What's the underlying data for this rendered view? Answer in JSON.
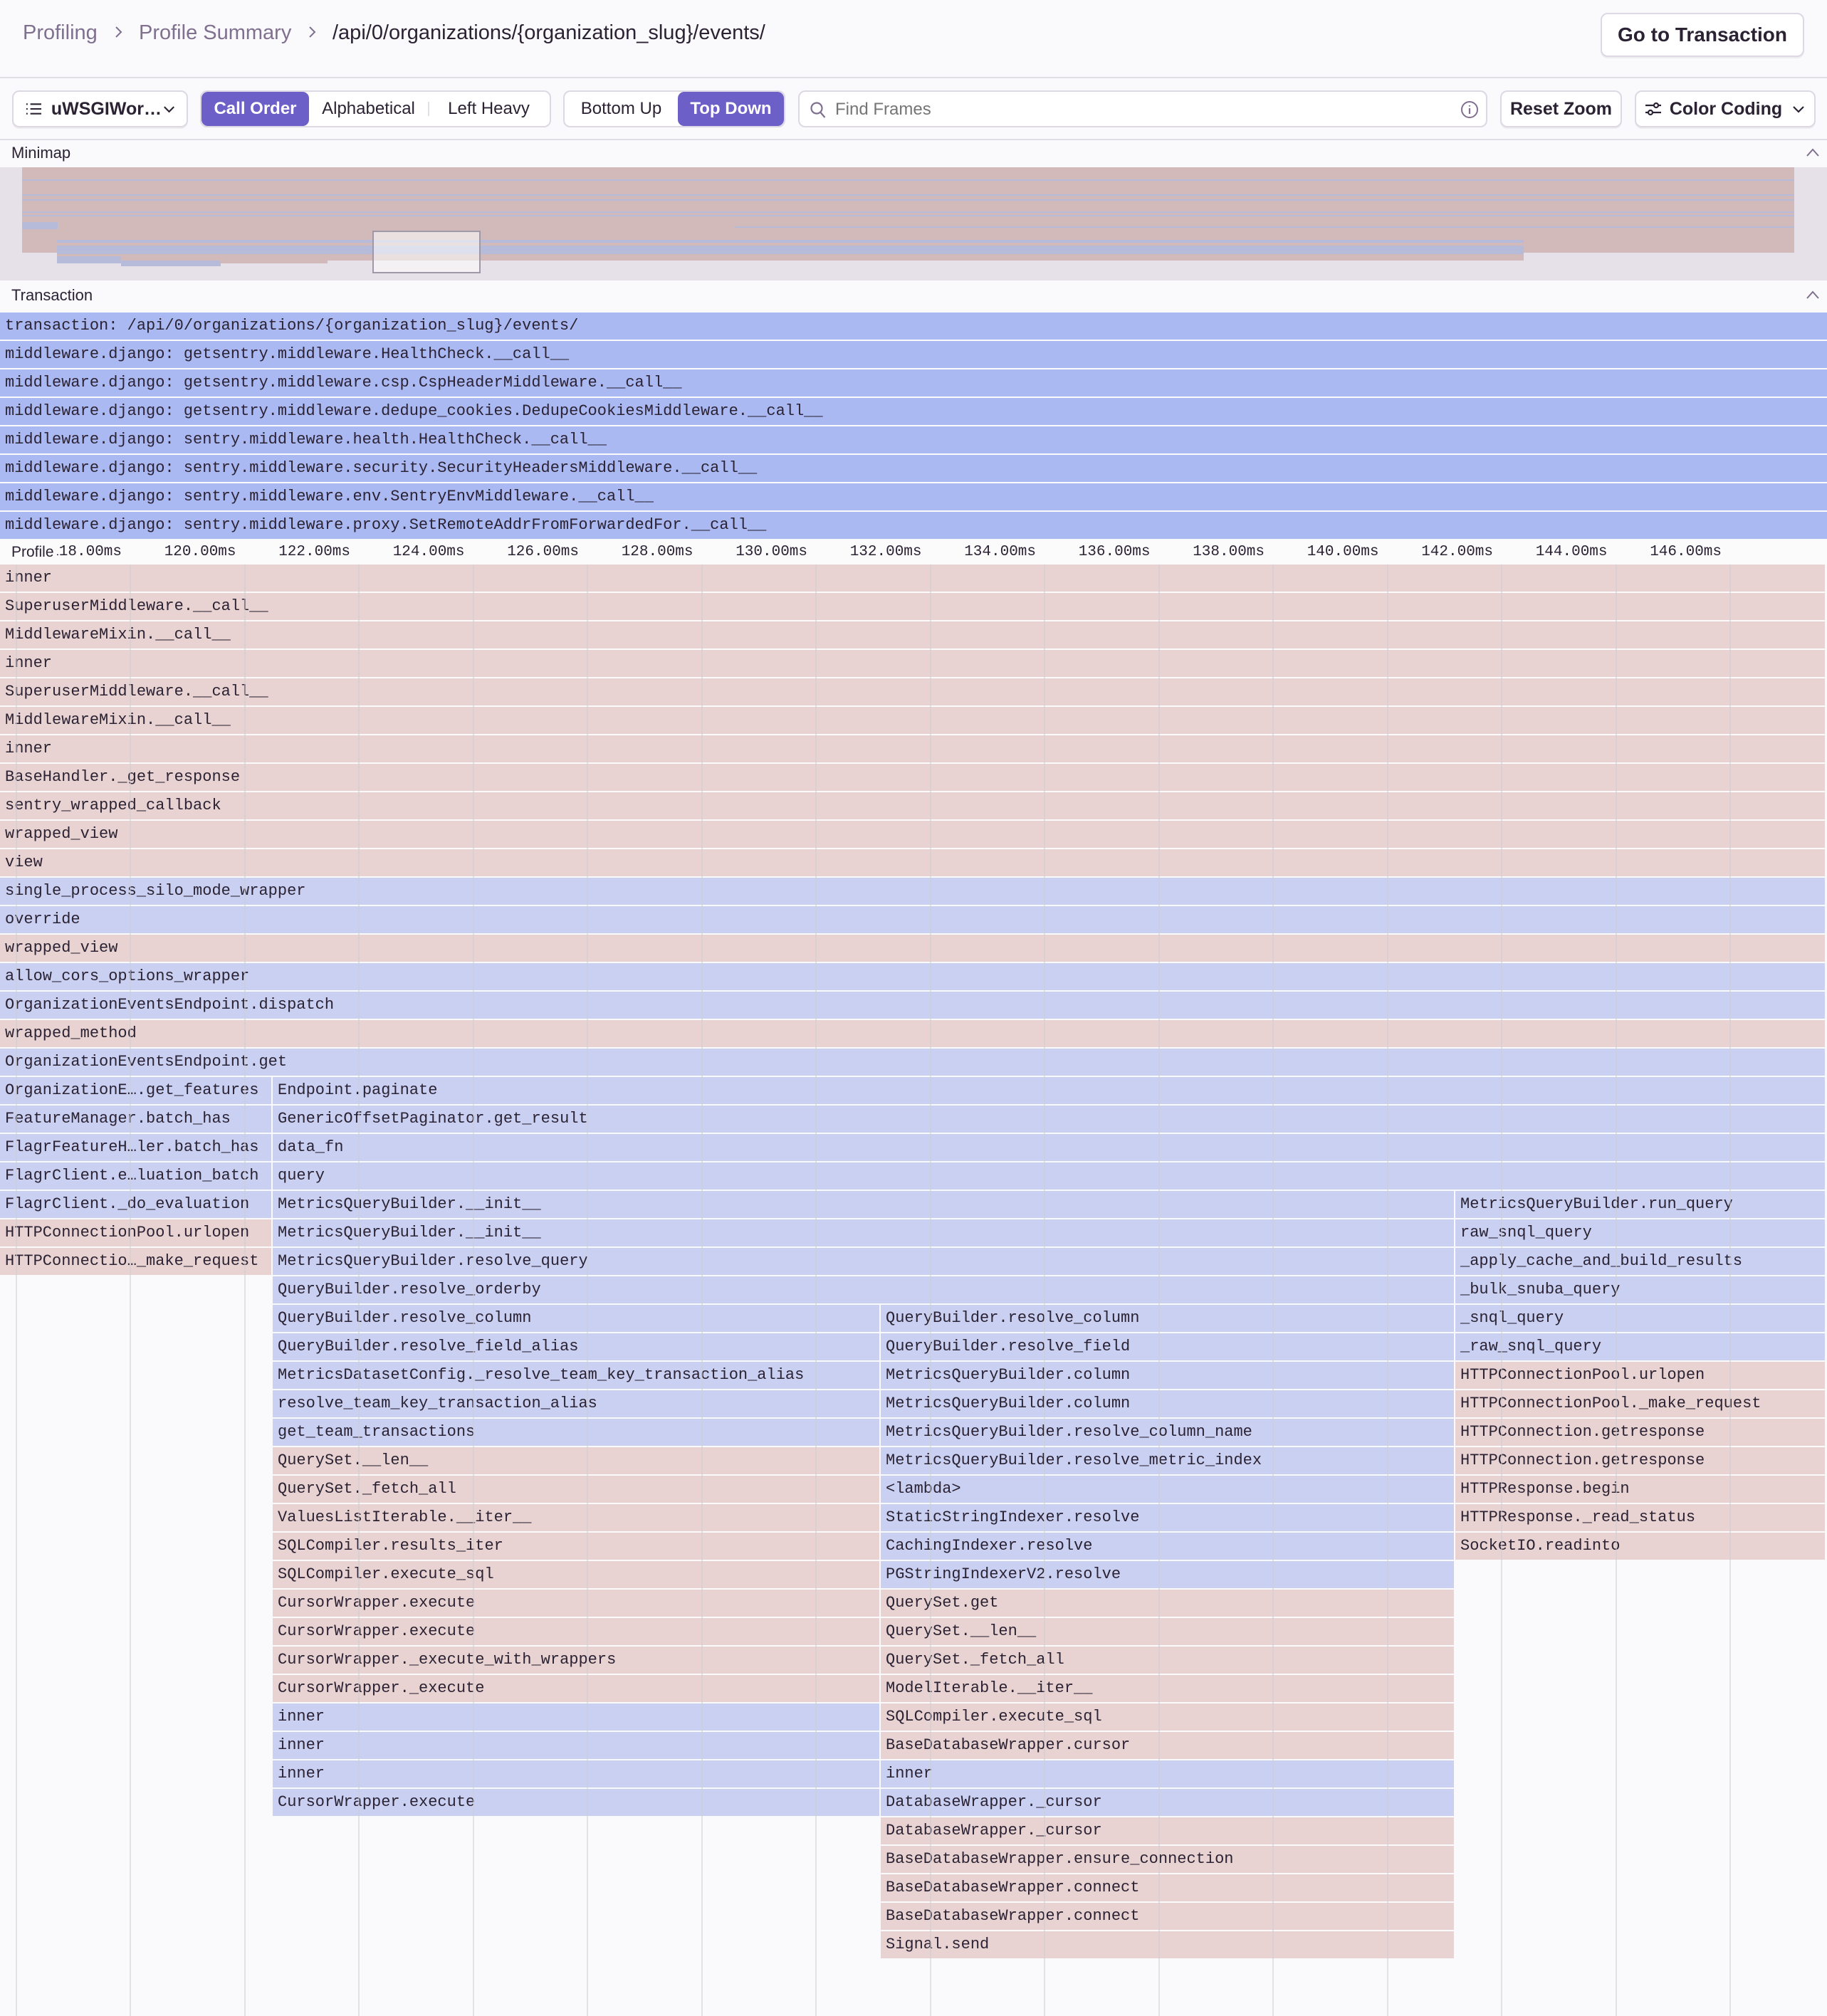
{
  "header": {
    "breadcrumbs": [
      "Profiling",
      "Profile Summary",
      "/api/0/organizations/{organization_slug}/events/"
    ],
    "go_to_transaction": "Go to Transaction"
  },
  "toolbar": {
    "thread_select": "uWSGIWor…",
    "sort_options": [
      "Call Order",
      "Alphabetical",
      "Left Heavy"
    ],
    "sort_active": "Call Order",
    "view_options": [
      "Bottom Up",
      "Top Down"
    ],
    "view_active": "Top Down",
    "search_placeholder": "Find Frames",
    "reset_zoom": "Reset Zoom",
    "color_coding": "Color Coding"
  },
  "minimap": {
    "label": "Minimap"
  },
  "transaction": {
    "label": "Transaction",
    "spans": [
      "transaction: /api/0/organizations/{organization_slug}/events/",
      "middleware.django: getsentry.middleware.HealthCheck.__call__",
      "middleware.django: getsentry.middleware.csp.CspHeaderMiddleware.__call__",
      "middleware.django: getsentry.middleware.dedupe_cookies.DedupeCookiesMiddleware.__call__",
      "middleware.django: sentry.middleware.health.HealthCheck.__call__",
      "middleware.django: sentry.middleware.security.SecurityHeadersMiddleware.__call__",
      "middleware.django: sentry.middleware.env.SentryEnvMiddleware.__call__",
      "middleware.django: sentry.middleware.proxy.SetRemoteAddrFromForwardedFor.__call__"
    ]
  },
  "axis": {
    "label": "Profile",
    "unit": "ms",
    "ticks": [
      "118.00ms",
      "120.00ms",
      "122.00ms",
      "124.00ms",
      "126.00ms",
      "128.00ms",
      "130.00ms",
      "132.00ms",
      "134.00ms",
      "136.00ms",
      "138.00ms",
      "140.00ms",
      "142.00ms",
      "144.00ms",
      "146.00ms"
    ]
  },
  "colors": {
    "pink": "#e8d3d2",
    "blue": "#c9d0f1",
    "transaction": "#abb9f3",
    "accent": "#6c5fc7"
  },
  "flamegraph": {
    "rows": [
      [
        [
          "inner",
          115.7,
          147.7,
          "pink"
        ]
      ],
      [
        [
          "SuperuserMiddleware.__call__",
          115.7,
          147.7,
          "pink"
        ]
      ],
      [
        [
          "MiddlewareMixin.__call__",
          115.7,
          147.7,
          "pink"
        ]
      ],
      [
        [
          "inner",
          115.7,
          147.7,
          "pink"
        ]
      ],
      [
        [
          "SuperuserMiddleware.__call__",
          115.7,
          147.7,
          "pink"
        ]
      ],
      [
        [
          "MiddlewareMixin.__call__",
          115.7,
          147.7,
          "pink"
        ]
      ],
      [
        [
          "inner",
          115.7,
          147.7,
          "pink"
        ]
      ],
      [
        [
          "BaseHandler._get_response",
          115.7,
          147.7,
          "pink"
        ]
      ],
      [
        [
          "sentry_wrapped_callback",
          115.7,
          147.7,
          "pink"
        ]
      ],
      [
        [
          "wrapped_view",
          115.7,
          147.7,
          "pink"
        ]
      ],
      [
        [
          "view",
          115.7,
          147.7,
          "pink"
        ]
      ],
      [
        [
          "single_process_silo_mode_wrapper",
          115.7,
          147.7,
          "blue"
        ]
      ],
      [
        [
          "override",
          115.7,
          147.7,
          "blue"
        ]
      ],
      [
        [
          "wrapped_view",
          115.7,
          147.7,
          "pink"
        ]
      ],
      [
        [
          "allow_cors_options_wrapper",
          115.7,
          147.7,
          "blue"
        ]
      ],
      [
        [
          "OrganizationEventsEndpoint.dispatch",
          115.7,
          147.7,
          "blue"
        ]
      ],
      [
        [
          "wrapped_method",
          115.7,
          147.7,
          "pink"
        ]
      ],
      [
        [
          "OrganizationEventsEndpoint.get",
          115.7,
          147.7,
          "blue"
        ]
      ],
      [
        [
          "OrganizationE….get_features",
          115.7,
          120.5,
          "blue"
        ],
        [
          "Endpoint.paginate",
          120.5,
          147.7,
          "blue"
        ]
      ],
      [
        [
          "FeatureManager.batch_has",
          115.7,
          120.5,
          "blue"
        ],
        [
          "GenericOffsetPaginator.get_result",
          120.5,
          147.7,
          "blue"
        ]
      ],
      [
        [
          "FlagrFeatureH…ler.batch_has",
          115.7,
          120.5,
          "blue"
        ],
        [
          "data_fn",
          120.5,
          147.7,
          "blue"
        ]
      ],
      [
        [
          "FlagrClient.e…luation_batch",
          115.7,
          120.5,
          "blue"
        ],
        [
          "query",
          120.5,
          147.7,
          "blue"
        ]
      ],
      [
        [
          "FlagrClient._do_evaluation",
          115.7,
          120.5,
          "blue"
        ],
        [
          "MetricsQueryBuilder.__init__",
          120.5,
          141.2,
          "blue"
        ],
        [
          "MetricsQueryBuilder.run_query",
          141.2,
          147.7,
          "blue"
        ]
      ],
      [
        [
          "HTTPConnectionPool.urlopen",
          115.7,
          120.5,
          "pink"
        ],
        [
          "MetricsQueryBuilder.__init__",
          120.5,
          141.2,
          "blue"
        ],
        [
          "raw_snql_query",
          141.2,
          147.7,
          "blue"
        ]
      ],
      [
        [
          "HTTPConnectio…_make_request",
          115.7,
          120.5,
          "pink"
        ],
        [
          "MetricsQueryBuilder.resolve_query",
          120.5,
          141.2,
          "blue"
        ],
        [
          "_apply_cache_and_build_results",
          141.2,
          147.7,
          "blue"
        ]
      ],
      [
        [
          "QueryBuilder.resolve_orderby",
          120.5,
          141.2,
          "blue"
        ],
        [
          "_bulk_snuba_query",
          141.2,
          147.7,
          "blue"
        ]
      ],
      [
        [
          "QueryBuilder.resolve_column",
          120.5,
          131.15,
          "blue"
        ],
        [
          "QueryBuilder.resolve_column",
          131.15,
          141.2,
          "blue"
        ],
        [
          "_snql_query",
          141.2,
          147.7,
          "blue"
        ]
      ],
      [
        [
          "QueryBuilder.resolve_field_alias",
          120.5,
          131.15,
          "blue"
        ],
        [
          "QueryBuilder.resolve_field",
          131.15,
          141.2,
          "blue"
        ],
        [
          "_raw_snql_query",
          141.2,
          147.7,
          "blue"
        ]
      ],
      [
        [
          "MetricsDatasetConfig._resolve_team_key_transaction_alias",
          120.5,
          131.15,
          "blue"
        ],
        [
          "MetricsQueryBuilder.column",
          131.15,
          141.2,
          "blue"
        ],
        [
          "HTTPConnectionPool.urlopen",
          141.2,
          147.7,
          "pink"
        ]
      ],
      [
        [
          "resolve_team_key_transaction_alias",
          120.5,
          131.15,
          "blue"
        ],
        [
          "MetricsQueryBuilder.column",
          131.15,
          141.2,
          "blue"
        ],
        [
          "HTTPConnectionPool._make_request",
          141.2,
          147.7,
          "pink"
        ]
      ],
      [
        [
          "get_team_transactions",
          120.5,
          131.15,
          "blue"
        ],
        [
          "MetricsQueryBuilder.resolve_column_name",
          131.15,
          141.2,
          "blue"
        ],
        [
          "HTTPConnection.getresponse",
          141.2,
          147.7,
          "pink"
        ]
      ],
      [
        [
          "QuerySet.__len__",
          120.5,
          131.15,
          "pink"
        ],
        [
          "MetricsQueryBuilder.resolve_metric_index",
          131.15,
          141.2,
          "blue"
        ],
        [
          "HTTPConnection.getresponse",
          141.2,
          147.7,
          "pink"
        ]
      ],
      [
        [
          "QuerySet._fetch_all",
          120.5,
          131.15,
          "pink"
        ],
        [
          "<lambda>",
          131.15,
          141.2,
          "blue"
        ],
        [
          "HTTPResponse.begin",
          141.2,
          147.7,
          "pink"
        ]
      ],
      [
        [
          "ValuesListIterable.__iter__",
          120.5,
          131.15,
          "pink"
        ],
        [
          "StaticStringIndexer.resolve",
          131.15,
          141.2,
          "blue"
        ],
        [
          "HTTPResponse._read_status",
          141.2,
          147.7,
          "pink"
        ]
      ],
      [
        [
          "SQLCompiler.results_iter",
          120.5,
          131.15,
          "pink"
        ],
        [
          "CachingIndexer.resolve",
          131.15,
          141.2,
          "blue"
        ],
        [
          "SocketIO.readinto",
          141.2,
          147.7,
          "pink"
        ]
      ],
      [
        [
          "SQLCompiler.execute_sql",
          120.5,
          131.15,
          "pink"
        ],
        [
          "PGStringIndexerV2.resolve",
          131.15,
          141.2,
          "blue"
        ]
      ],
      [
        [
          "CursorWrapper.execute",
          120.5,
          131.15,
          "pink"
        ],
        [
          "QuerySet.get",
          131.15,
          141.2,
          "pink"
        ]
      ],
      [
        [
          "CursorWrapper.execute",
          120.5,
          131.15,
          "pink"
        ],
        [
          "QuerySet.__len__",
          131.15,
          141.2,
          "pink"
        ]
      ],
      [
        [
          "CursorWrapper._execute_with_wrappers",
          120.5,
          131.15,
          "pink"
        ],
        [
          "QuerySet._fetch_all",
          131.15,
          141.2,
          "pink"
        ]
      ],
      [
        [
          "CursorWrapper._execute",
          120.5,
          131.15,
          "pink"
        ],
        [
          "ModelIterable.__iter__",
          131.15,
          141.2,
          "pink"
        ]
      ],
      [
        [
          "inner",
          120.5,
          131.15,
          "blue"
        ],
        [
          "SQLCompiler.execute_sql",
          131.15,
          141.2,
          "pink"
        ]
      ],
      [
        [
          "inner",
          120.5,
          131.15,
          "blue"
        ],
        [
          "BaseDatabaseWrapper.cursor",
          131.15,
          141.2,
          "pink"
        ]
      ],
      [
        [
          "inner",
          120.5,
          131.15,
          "blue"
        ],
        [
          "inner",
          131.15,
          141.2,
          "blue"
        ]
      ],
      [
        [
          "CursorWrapper.execute",
          120.5,
          131.15,
          "blue"
        ],
        [
          "DatabaseWrapper._cursor",
          131.15,
          141.2,
          "blue"
        ]
      ],
      [
        [
          "DatabaseWrapper._cursor",
          131.15,
          141.2,
          "pink"
        ]
      ],
      [
        [
          "BaseDatabaseWrapper.ensure_connection",
          131.15,
          141.2,
          "pink"
        ]
      ],
      [
        [
          "BaseDatabaseWrapper.connect",
          131.15,
          141.2,
          "pink"
        ]
      ],
      [
        [
          "BaseDatabaseWrapper.connect",
          131.15,
          141.2,
          "pink"
        ]
      ],
      [
        [
          "Signal.send",
          131.15,
          141.2,
          "pink"
        ]
      ]
    ]
  }
}
